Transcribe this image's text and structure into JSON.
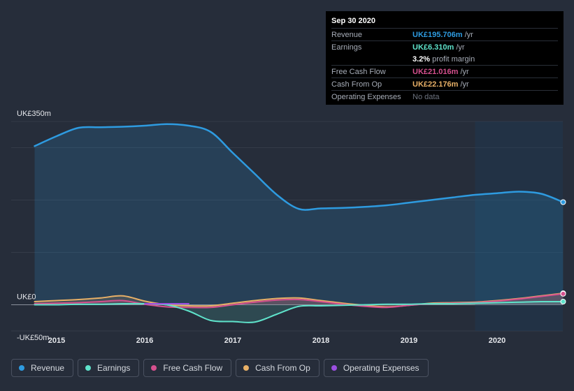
{
  "tooltip": {
    "date": "Sep 30 2020",
    "rows": [
      {
        "label": "Revenue",
        "value": "UK£195.706m",
        "unit": "/yr",
        "color": "#2e9be0"
      },
      {
        "label": "Earnings",
        "value": "UK£6.310m",
        "unit": "/yr",
        "color": "#5fe3cb"
      },
      {
        "label": "",
        "value": "3.2%",
        "unit": "profit margin",
        "color": "#ffffff"
      },
      {
        "label": "Free Cash Flow",
        "value": "UK£21.016m",
        "unit": "/yr",
        "color": "#d5508e"
      },
      {
        "label": "Cash From Op",
        "value": "UK£22.176m",
        "unit": "/yr",
        "color": "#e8b067"
      },
      {
        "label": "Operating Expenses",
        "value": "No data",
        "unit": "",
        "color": "#6e7480"
      }
    ]
  },
  "legend": [
    {
      "label": "Revenue",
      "color": "#2e9be0"
    },
    {
      "label": "Earnings",
      "color": "#5fe3cb"
    },
    {
      "label": "Free Cash Flow",
      "color": "#d5508e"
    },
    {
      "label": "Cash From Op",
      "color": "#e8b067"
    },
    {
      "label": "Operating Expenses",
      "color": "#9b4fe0"
    }
  ],
  "chart_data": {
    "type": "area",
    "title": "",
    "xlabel": "",
    "ylabel": "",
    "ylim": [
      -50,
      350
    ],
    "y_tick_labels": [
      "UK£350m",
      "UK£0",
      "-UK£50m"
    ],
    "y_tick_values": [
      350,
      0,
      -50
    ],
    "x_tick_labels": [
      "2015",
      "2016",
      "2017",
      "2018",
      "2019",
      "2020"
    ],
    "x_tick_values": [
      2015.0,
      2016.0,
      2017.0,
      2018.0,
      2019.0,
      2020.0
    ],
    "x_range": [
      2014.5,
      2020.75
    ],
    "forecast_start": 2019.75,
    "series": [
      {
        "name": "Revenue",
        "color": "#2e9be0",
        "x": [
          2014.75,
          2015.0,
          2015.25,
          2015.5,
          2015.75,
          2016.0,
          2016.25,
          2016.5,
          2016.75,
          2017.0,
          2017.25,
          2017.5,
          2017.75,
          2018.0,
          2018.25,
          2018.5,
          2018.75,
          2019.0,
          2019.25,
          2019.5,
          2019.75,
          2020.0,
          2020.25,
          2020.5,
          2020.75
        ],
        "values": [
          303,
          322,
          338,
          339,
          340,
          342,
          345,
          342,
          330,
          290,
          250,
          210,
          183,
          184,
          185,
          187,
          190,
          195,
          200,
          205,
          210,
          213,
          216,
          212,
          196
        ]
      },
      {
        "name": "Earnings",
        "color": "#5fe3cb",
        "x": [
          2014.75,
          2015.0,
          2015.25,
          2015.5,
          2015.75,
          2016.0,
          2016.25,
          2016.5,
          2016.75,
          2017.0,
          2017.25,
          2017.5,
          2017.75,
          2018.0,
          2018.25,
          2018.5,
          2018.75,
          2019.0,
          2019.25,
          2019.5,
          2019.75,
          2020.0,
          2020.25,
          2020.5,
          2020.75
        ],
        "values": [
          0,
          0,
          1,
          1,
          2,
          2,
          0,
          -12,
          -30,
          -32,
          -33,
          -18,
          -3,
          -2,
          -1,
          0,
          1,
          1,
          2,
          2,
          3,
          4,
          5,
          6,
          6
        ]
      },
      {
        "name": "Free Cash Flow",
        "color": "#d5508e",
        "x": [
          2014.75,
          2015.0,
          2015.25,
          2015.5,
          2015.75,
          2016.0,
          2016.25,
          2016.5,
          2016.75,
          2017.0,
          2017.25,
          2017.5,
          2017.75,
          2018.0,
          2018.25,
          2018.5,
          2018.75,
          2019.0,
          2019.25,
          2019.5,
          2019.75,
          2020.0,
          2020.25,
          2020.5,
          2020.75
        ],
        "values": [
          2,
          3,
          4,
          6,
          8,
          1,
          -4,
          -5,
          -5,
          0,
          5,
          9,
          10,
          6,
          1,
          -3,
          -5,
          -1,
          2,
          3,
          4,
          7,
          11,
          16,
          21
        ]
      },
      {
        "name": "Cash From Op",
        "color": "#e8b067",
        "x": [
          2014.75,
          2015.0,
          2015.25,
          2015.5,
          2015.75,
          2016.0,
          2016.25,
          2016.5,
          2016.75,
          2017.0,
          2017.25,
          2017.5,
          2017.75,
          2018.0,
          2018.25,
          2018.5,
          2018.75,
          2019.0,
          2019.25,
          2019.5,
          2019.75,
          2020.0,
          2020.25,
          2020.5,
          2020.75
        ],
        "values": [
          6,
          8,
          10,
          13,
          17,
          7,
          0,
          -2,
          -2,
          3,
          8,
          12,
          13,
          8,
          3,
          -1,
          -4,
          -1,
          3,
          4,
          5,
          8,
          12,
          17,
          22
        ]
      },
      {
        "name": "Operating Expenses",
        "color": "#9b4fe0",
        "x": [
          2016.0,
          2016.25,
          2016.5
        ],
        "values": [
          2,
          2,
          2
        ]
      }
    ]
  }
}
